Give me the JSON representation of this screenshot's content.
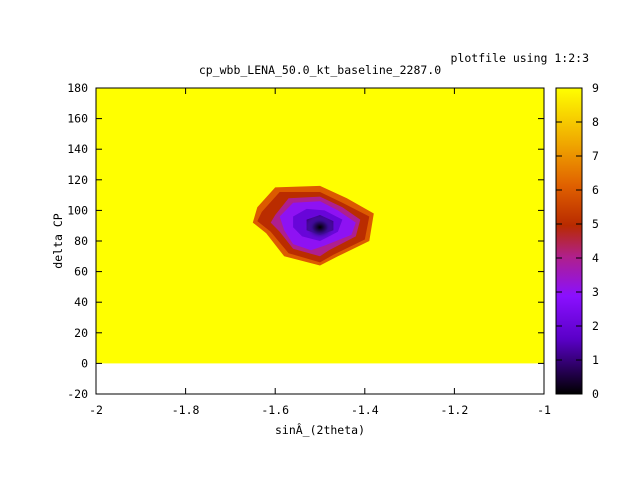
{
  "chart_data": {
    "type": "heatmap",
    "title": "cp_wbb_LENA_50.0_kt_baseline_2287.0",
    "legend_key": "plotfile using 1:2:3",
    "xlabel": "sinÂ_(2theta)",
    "ylabel": "delta CP",
    "xlim": [
      -2,
      -1
    ],
    "ylim": [
      -20,
      180
    ],
    "data_ylim": [
      0,
      180
    ],
    "x_ticks": [
      -2,
      -1.8,
      -1.6,
      -1.4,
      -1.2,
      -1
    ],
    "x_tick_labels": [
      "-2",
      "-1.8",
      "-1.6",
      "-1.4",
      "-1.2",
      "-1"
    ],
    "y_ticks": [
      -20,
      0,
      20,
      40,
      60,
      80,
      100,
      120,
      140,
      160,
      180
    ],
    "y_tick_labels": [
      "-20",
      "0",
      "20",
      "40",
      "60",
      "80",
      "100",
      "120",
      "140",
      "160",
      "180"
    ],
    "colorbar": {
      "min": 0,
      "max": 9,
      "ticks": [
        0,
        1,
        2,
        3,
        4,
        5,
        6,
        7,
        8,
        9
      ],
      "tick_labels": [
        "0",
        "1",
        "2",
        "3",
        "4",
        "5",
        "6",
        "7",
        "8",
        "9"
      ],
      "palette": "black-purple-red-orange-yellow"
    },
    "background_value": 9,
    "grid": false,
    "legend_position": "top-right",
    "contour_levels": [
      {
        "value": 6,
        "polygon": [
          [
            -1.64,
            102
          ],
          [
            -1.6,
            115
          ],
          [
            -1.5,
            116
          ],
          [
            -1.44,
            108
          ],
          [
            -1.38,
            98
          ],
          [
            -1.39,
            80
          ],
          [
            -1.46,
            70
          ],
          [
            -1.5,
            64
          ],
          [
            -1.58,
            70
          ],
          [
            -1.62,
            85
          ],
          [
            -1.65,
            92
          ]
        ]
      },
      {
        "value": 5,
        "polygon": [
          [
            -1.63,
            99
          ],
          [
            -1.59,
            112
          ],
          [
            -1.5,
            112
          ],
          [
            -1.45,
            105
          ],
          [
            -1.39,
            96
          ],
          [
            -1.4,
            81
          ],
          [
            -1.47,
            71
          ],
          [
            -1.5,
            66
          ],
          [
            -1.57,
            72
          ],
          [
            -1.61,
            86
          ],
          [
            -1.64,
            93
          ]
        ]
      },
      {
        "value": 4,
        "polygon": [
          [
            -1.6,
            97
          ],
          [
            -1.57,
            108
          ],
          [
            -1.5,
            109
          ],
          [
            -1.45,
            102
          ],
          [
            -1.41,
            94
          ],
          [
            -1.42,
            83
          ],
          [
            -1.48,
            74
          ],
          [
            -1.5,
            70
          ],
          [
            -1.56,
            75
          ],
          [
            -1.59,
            86
          ],
          [
            -1.61,
            92
          ]
        ]
      },
      {
        "value": 3,
        "polygon": [
          [
            -1.59,
            96
          ],
          [
            -1.56,
            105
          ],
          [
            -1.5,
            106
          ],
          [
            -1.46,
            100
          ],
          [
            -1.42,
            92
          ],
          [
            -1.43,
            84
          ],
          [
            -1.49,
            77
          ],
          [
            -1.52,
            74
          ],
          [
            -1.56,
            78
          ],
          [
            -1.58,
            87
          ]
        ]
      },
      {
        "value": 2,
        "polygon": [
          [
            -1.56,
            96
          ],
          [
            -1.53,
            101
          ],
          [
            -1.49,
            100
          ],
          [
            -1.45,
            94
          ],
          [
            -1.46,
            86
          ],
          [
            -1.5,
            80
          ],
          [
            -1.54,
            83
          ],
          [
            -1.56,
            89
          ]
        ]
      },
      {
        "value": 1,
        "polygon": [
          [
            -1.53,
            94
          ],
          [
            -1.5,
            97
          ],
          [
            -1.47,
            93
          ],
          [
            -1.47,
            87
          ],
          [
            -1.5,
            84
          ],
          [
            -1.53,
            87
          ]
        ]
      }
    ],
    "minimum": {
      "x": -1.5,
      "y": 89,
      "value": 0
    }
  }
}
